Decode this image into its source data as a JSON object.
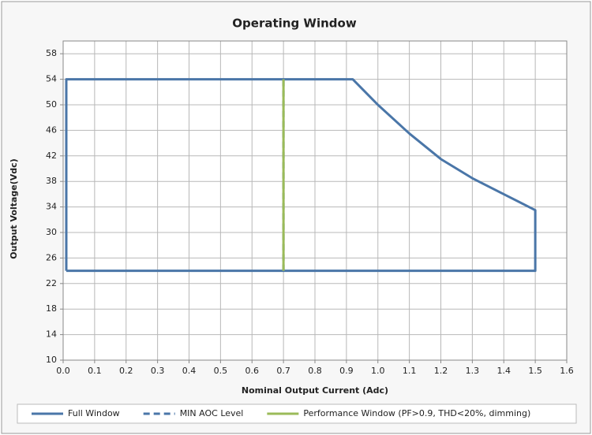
{
  "chart_data": {
    "type": "line",
    "title": "Operating Window",
    "x_label": "Nominal Output Current (Adc)",
    "y_label": "Output Voltage(Vdc)",
    "xlim": [
      0,
      1.6
    ],
    "ylim": [
      10,
      60
    ],
    "xticks": [
      {
        "value": 0,
        "label": "0.0"
      },
      0.1,
      0.2,
      0.3,
      0.4,
      0.5,
      0.6,
      0.7,
      0.8,
      0.9,
      {
        "value": 1,
        "label": "1.0"
      },
      1.1,
      1.2,
      1.3,
      1.4,
      1.5,
      1.6
    ],
    "yticks": [
      10,
      14,
      18,
      22,
      26,
      30,
      34,
      38,
      42,
      46,
      50,
      54,
      58
    ],
    "grid": true,
    "legend": "bottom",
    "series": [
      {
        "name": "Full Window",
        "color": "#4a76a8",
        "dash": false,
        "x": [
          0.01,
          0.01,
          0.92,
          1.0,
          1.1,
          1.2,
          1.3,
          1.4,
          1.5,
          1.5,
          0.01
        ],
        "values": [
          24,
          54,
          54,
          50,
          45.5,
          41.5,
          38.5,
          36,
          33.5,
          24,
          24
        ]
      },
      {
        "name": "MIN AOC Level",
        "color": "#4a76a8",
        "dash": true,
        "x": [
          0.7,
          0.7
        ],
        "values": [
          24,
          54
        ]
      },
      {
        "name": "Performance Window (PF>0.9, THD<20%, dimming)",
        "color": "#9bbb59",
        "dash": false,
        "x": [
          0.7,
          0.7
        ],
        "values": [
          24,
          54
        ]
      }
    ]
  }
}
